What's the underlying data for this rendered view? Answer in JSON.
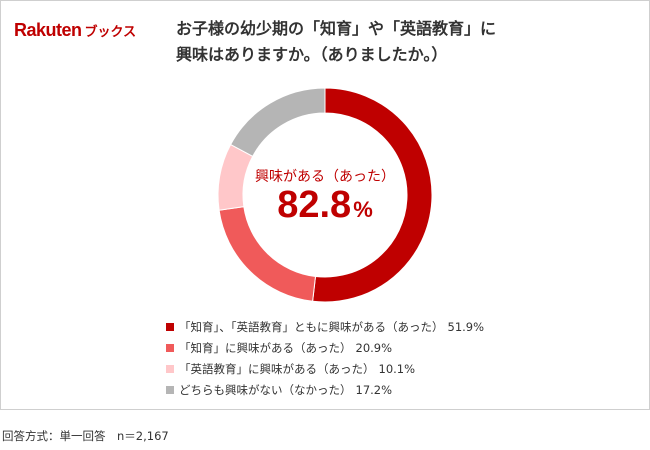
{
  "brand": {
    "name": "Rakuten",
    "sub": "ブックス"
  },
  "title": {
    "line1": "お子様の幼少期の「知育」や「英語教育」に",
    "line2": "興味はありますか。（ありましたか。）"
  },
  "center": {
    "label": "興味がある（あった）",
    "value": "82.8",
    "unit": "%"
  },
  "footnote": "回答方式：単一回答　n＝2,167",
  "chart_data": {
    "type": "pie",
    "style": "donut",
    "title": "お子様の幼少期の「知育」や「英語教育」に興味はありますか。（ありましたか。）",
    "unit": "%",
    "legend_position": "bottom",
    "slices": [
      {
        "label": "「知育」、「英語教育」ともに興味がある（あった）",
        "value": 51.9,
        "display": "51.9%",
        "color": "#bf0000"
      },
      {
        "label": "「知育」に興味がある（あった）",
        "value": 20.9,
        "display": "20.9%",
        "color": "#f05a5a"
      },
      {
        "label": "「英語教育」に興味がある（あった）",
        "value": 10.1,
        "display": "10.1%",
        "color": "#ffc7c9"
      },
      {
        "label": "どちらも興味がない（なかった）",
        "value": 17.2,
        "display": "17.2%",
        "color": "#b5b5b5"
      }
    ]
  }
}
